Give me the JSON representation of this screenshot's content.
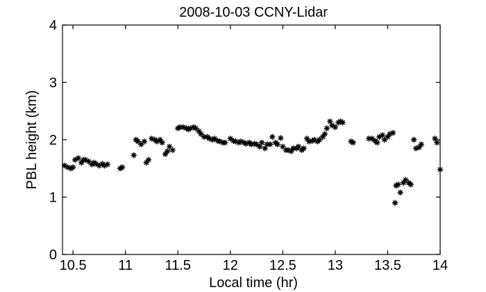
{
  "chart_data": {
    "type": "scatter",
    "title": "2008-10-03 CCNY-Lidar",
    "xlabel": "Local time (hr)",
    "ylabel": "PBL height (km)",
    "xlim": [
      10.4,
      14.0
    ],
    "ylim": [
      0,
      4
    ],
    "xticks": [
      10.5,
      11,
      11.5,
      12,
      12.5,
      13,
      13.5,
      14
    ],
    "xtick_labels": [
      "10.5",
      "11",
      "11.5",
      "12",
      "12.5",
      "13",
      "13.5",
      "14"
    ],
    "yticks": [
      0,
      1,
      2,
      3,
      4
    ],
    "ytick_labels": [
      "0",
      "1",
      "2",
      "3",
      "4"
    ],
    "marker": "asterisk",
    "grid": false,
    "colors": {
      "marker": "#000000"
    },
    "series": [
      {
        "x": [
          10.42,
          10.45,
          10.48,
          10.5,
          10.52,
          10.55,
          10.58,
          10.6,
          10.62,
          10.65,
          10.68,
          10.7,
          10.72,
          10.75,
          10.78,
          10.8,
          10.83,
          10.95,
          10.97,
          11.08,
          11.1,
          11.12,
          11.15,
          11.18,
          11.2,
          11.22,
          11.25,
          11.28,
          11.3,
          11.33,
          11.35,
          11.38,
          11.4,
          11.42,
          11.45,
          11.5,
          11.52,
          11.55,
          11.58,
          11.6,
          11.62,
          11.65,
          11.67,
          11.7,
          11.72,
          11.75,
          11.78,
          11.8,
          11.83,
          11.85,
          11.88,
          11.9,
          11.93,
          11.95,
          12.0,
          12.03,
          12.05,
          12.08,
          12.1,
          12.13,
          12.15,
          12.18,
          12.2,
          12.23,
          12.25,
          12.28,
          12.3,
          12.33,
          12.35,
          12.38,
          12.4,
          12.43,
          12.45,
          12.48,
          12.5,
          12.53,
          12.55,
          12.58,
          12.6,
          12.63,
          12.65,
          12.68,
          12.7,
          12.73,
          12.75,
          12.78,
          12.8,
          12.83,
          12.85,
          12.88,
          12.9,
          12.92,
          12.95,
          12.97,
          13.0,
          13.03,
          13.05,
          13.07,
          13.15,
          13.17,
          13.32,
          13.35,
          13.38,
          13.4,
          13.42,
          13.45,
          13.47,
          13.5,
          13.52,
          13.55,
          13.57,
          13.58,
          13.6,
          13.62,
          13.65,
          13.67,
          13.7,
          13.72,
          13.75,
          13.77,
          13.8,
          13.82,
          13.95,
          13.97,
          14.0
        ],
        "y": [
          1.55,
          1.52,
          1.5,
          1.52,
          1.65,
          1.68,
          1.6,
          1.65,
          1.65,
          1.62,
          1.57,
          1.6,
          1.58,
          1.55,
          1.58,
          1.55,
          1.57,
          1.5,
          1.52,
          1.73,
          2.0,
          1.97,
          1.92,
          1.97,
          1.6,
          1.65,
          2.02,
          2.0,
          1.97,
          2.0,
          1.95,
          1.75,
          1.8,
          1.88,
          1.82,
          2.2,
          2.22,
          2.22,
          2.2,
          2.18,
          2.2,
          2.22,
          2.2,
          2.15,
          2.1,
          2.05,
          2.05,
          2.02,
          2.0,
          2.02,
          1.98,
          1.97,
          1.95,
          1.95,
          2.02,
          1.98,
          1.97,
          1.95,
          1.97,
          1.95,
          1.93,
          1.95,
          1.92,
          1.93,
          1.92,
          1.88,
          1.95,
          1.85,
          1.92,
          1.92,
          2.05,
          1.95,
          1.92,
          2.03,
          1.88,
          1.82,
          1.82,
          1.8,
          1.85,
          1.85,
          1.88,
          1.82,
          1.85,
          2.02,
          1.97,
          1.98,
          2.0,
          1.97,
          2.0,
          2.05,
          2.1,
          2.2,
          2.32,
          2.25,
          2.22,
          2.3,
          2.32,
          2.3,
          1.97,
          1.95,
          2.02,
          2.02,
          1.98,
          1.95,
          2.05,
          2.08,
          2.0,
          2.05,
          2.1,
          2.12,
          0.9,
          1.2,
          1.22,
          1.08,
          1.25,
          1.3,
          1.25,
          1.22,
          2.0,
          1.85,
          1.87,
          1.92,
          2.02,
          1.95,
          1.48
        ]
      }
    ]
  }
}
